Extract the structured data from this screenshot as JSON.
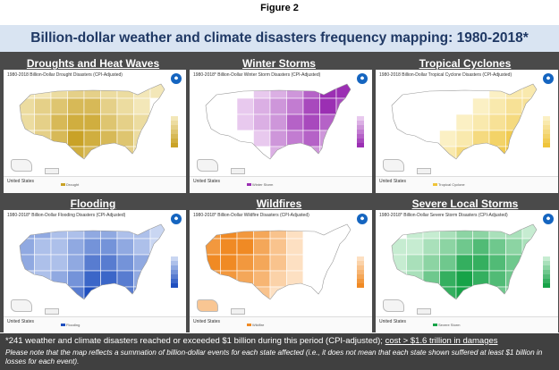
{
  "figure_label": "Figure 2",
  "banner_title": "Billion-dollar weather and climate disasters frequency mapping: 1980-2018*",
  "panels": [
    {
      "title": "Droughts and Heat Waves",
      "subtitle": "1980-2018 Billion-Dollar Drought Disasters (CPI-Adjusted)",
      "region": "United States",
      "legend_item": "Drought",
      "color_light": "#f3e7b8",
      "color_dark": "#c9a227"
    },
    {
      "title": "Winter Storms",
      "subtitle": "1980-2018* Billion-Dollar Winter Storm Disasters (CPI-Adjusted)",
      "region": "United States",
      "legend_item": "Winter Storm",
      "color_light": "#e8c9ee",
      "color_dark": "#9b2fb3"
    },
    {
      "title": "Tropical Cyclones",
      "subtitle": "1980-2018 Billion-Dollar Tropical Cyclone Disasters (CPI-Adjusted)",
      "region": "United States",
      "legend_item": "Tropical Cyclone",
      "color_light": "#fbf0c4",
      "color_dark": "#efc43a"
    },
    {
      "title": "Flooding",
      "subtitle": "1980-2018* Billion-Dollar Flooding Disasters (CPI-Adjusted)",
      "region": "United States",
      "legend_item": "Flooding",
      "color_light": "#c9d6f2",
      "color_dark": "#1f4fbf"
    },
    {
      "title": "Wildfires",
      "subtitle": "1980-2018* Billion-Dollar Wildfire Disasters (CPI-Adjusted)",
      "region": "United States",
      "legend_item": "Wildfire",
      "color_light": "#fde0c2",
      "color_dark": "#f08a24"
    },
    {
      "title": "Severe Local Storms",
      "subtitle": "1980-2018* Billion-Dollar Severe Storm Disasters (CPI-Adjusted)",
      "region": "United States",
      "legend_item": "Severe Storm",
      "color_light": "#c6ecd1",
      "color_dark": "#17a348"
    }
  ],
  "footnote": {
    "line1": "*241 weather and climate disasters reached or exceeded $1 billion during this period (CPI-adjusted); ",
    "cost": "cost > $1.6 trillion in damages",
    "line2": "Please note that the map reflects a summation of billion-dollar events for each state affected (i.e., it does not mean that each state shown suffered at least $1 billion in losses for each event)."
  }
}
